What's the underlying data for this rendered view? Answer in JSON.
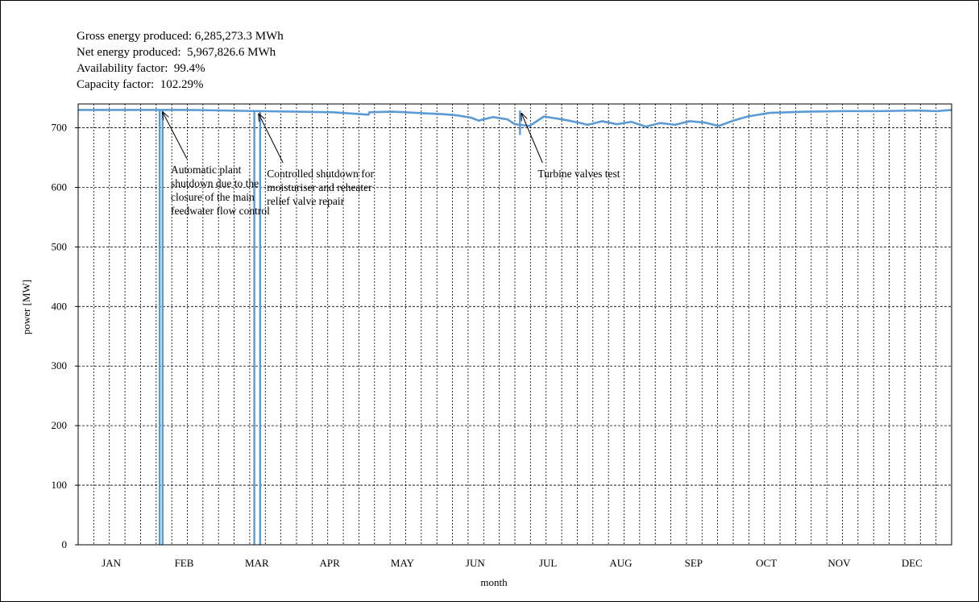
{
  "stats": [
    "Gross energy produced: 6,285,273.3 MWh",
    "Net energy produced:  5,967,826.6 MWh",
    "Availability factor:  99.4%",
    "Capacity factor:  102.29%"
  ],
  "colors": {
    "series": "#5b9bd5",
    "grid": "#000000",
    "text": "#000000"
  },
  "chart_data": {
    "type": "line",
    "title": "",
    "xlabel": "month",
    "ylabel": "power [MW]",
    "ylim": [
      0,
      740
    ],
    "yticks": [
      0,
      100,
      200,
      300,
      400,
      500,
      600,
      700
    ],
    "xlim": [
      0,
      12
    ],
    "months": [
      "JAN",
      "FEB",
      "MAR",
      "APR",
      "MAY",
      "JUN",
      "JUL",
      "AUG",
      "SEP",
      "OCT",
      "NOV",
      "DEC"
    ],
    "grid": true,
    "grid_style": "dashed",
    "series": [
      {
        "x": [
          0.0,
          0.5,
          1.0,
          1.5,
          2.0,
          2.5,
          3.0,
          3.5,
          3.99,
          4.0,
          4.3,
          4.5,
          4.8,
          5.0,
          5.2,
          5.4,
          5.5,
          5.7,
          5.9,
          6.0,
          6.2,
          6.4,
          6.5,
          6.7,
          6.9,
          7.0,
          7.2,
          7.4,
          7.6,
          7.8,
          8.0,
          8.2,
          8.4,
          8.6,
          8.8,
          9.0,
          9.2,
          9.5,
          10.0,
          10.5,
          11.0,
          11.5,
          11.8,
          12.0
        ],
        "y": [
          730,
          730,
          730,
          730,
          729,
          728,
          727,
          726,
          722,
          726,
          727,
          726,
          724,
          723,
          721,
          717,
          712,
          718,
          714,
          706,
          703,
          719,
          717,
          713,
          708,
          705,
          711,
          706,
          710,
          702,
          708,
          705,
          711,
          709,
          703,
          712,
          719,
          725,
          727,
          728,
          728,
          729,
          728,
          730
        ]
      }
    ],
    "dips": [
      {
        "x": 1.12,
        "y": 0
      },
      {
        "x": 1.16,
        "y": 0
      },
      {
        "x": 2.42,
        "y": 0
      },
      {
        "x": 2.5,
        "y": 0
      },
      {
        "x": 6.07,
        "y": 688
      }
    ],
    "annotations": [
      {
        "lines": [
          "Automatic plant",
          "shutdown due to the",
          "closure of the main",
          "feedwater flow control"
        ],
        "target_x": 1.14,
        "target_y": 730
      },
      {
        "lines": [
          "Controlled shutdown for",
          "moisturiser and reheater",
          "relief valve repair"
        ],
        "target_x": 2.46,
        "target_y": 727
      },
      {
        "lines": [
          "Turbine valves test"
        ],
        "target_x": 6.07,
        "target_y": 728
      }
    ]
  }
}
